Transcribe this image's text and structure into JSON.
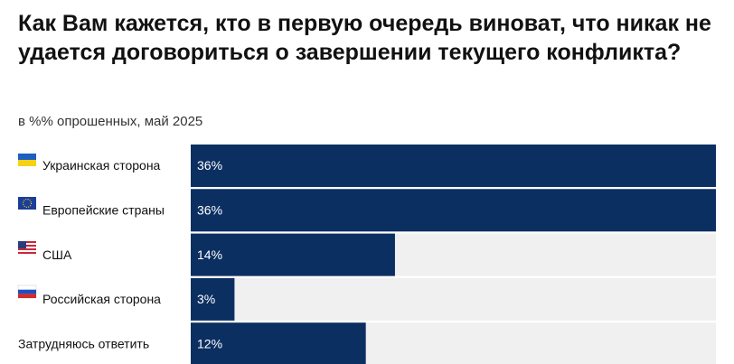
{
  "chart_data": {
    "type": "bar",
    "orientation": "horizontal",
    "title": "Как Вам кажется, кто в первую очередь виноват, что никак не удается договориться о завершении текущего конфликта?",
    "subtitle": "в %% опрошенных, май 2025",
    "categories": [
      "Украинская сторона",
      "Европейские страны",
      "США",
      "Российская сторона",
      "Затрудняюсь ответить"
    ],
    "values": [
      36,
      36,
      14,
      3,
      12
    ],
    "value_labels": [
      "36%",
      "36%",
      "14%",
      "3%",
      "12%"
    ],
    "color": "#0c2f62"
  }
}
